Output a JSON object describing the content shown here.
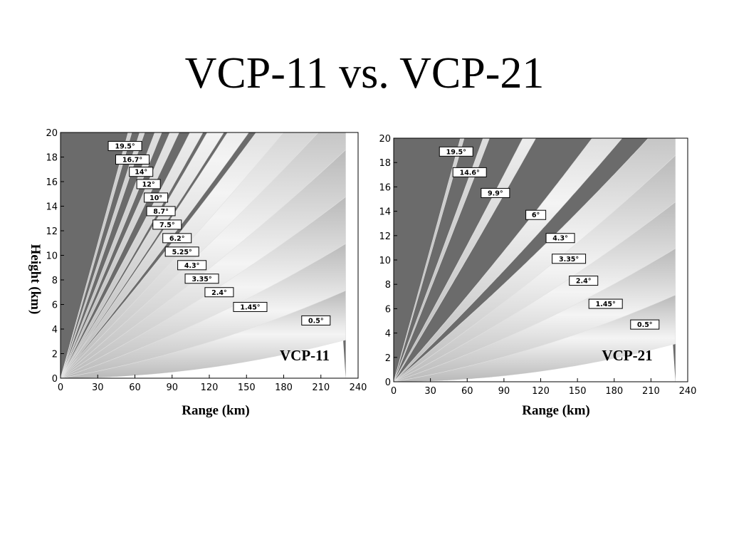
{
  "slide": {
    "title": "VCP-11 vs. VCP-21"
  },
  "colors": {
    "background": "#6b6b6b",
    "beam_center": "#f4f4f4",
    "beam_edge": "#b9b9b9"
  },
  "chart_data": [
    {
      "type": "area",
      "title": "",
      "xlabel": "Range (km)",
      "ylabel": "Height (km)",
      "annotation": "VCP-11",
      "xlim": [
        0,
        240
      ],
      "ylim": [
        0,
        20
      ],
      "x_ticks": [
        "0",
        "30",
        "60",
        "90",
        "120",
        "150",
        "180",
        "210",
        "240"
      ],
      "y_ticks": [
        "0",
        "2",
        "4",
        "6",
        "8",
        "10",
        "12",
        "14",
        "16",
        "18",
        "20"
      ],
      "grid": false,
      "legend": "none",
      "beams": [
        {
          "label": "19.5°",
          "elevation": 19.5,
          "label_x": 52,
          "label_y": 18.9
        },
        {
          "label": "16.7°",
          "elevation": 16.7,
          "label_x": 58,
          "label_y": 17.8
        },
        {
          "label": "14°",
          "elevation": 14,
          "label_x": 65,
          "label_y": 16.8
        },
        {
          "label": "12°",
          "elevation": 12,
          "label_x": 71,
          "label_y": 15.8
        },
        {
          "label": "10°",
          "elevation": 10,
          "label_x": 77,
          "label_y": 14.7
        },
        {
          "label": "8.7°",
          "elevation": 8.7,
          "label_x": 81,
          "label_y": 13.6
        },
        {
          "label": "7.5°",
          "elevation": 7.5,
          "label_x": 86,
          "label_y": 12.5
        },
        {
          "label": "6.2°",
          "elevation": 6.2,
          "label_x": 94,
          "label_y": 11.4
        },
        {
          "label": "5.25°",
          "elevation": 5.25,
          "label_x": 98,
          "label_y": 10.3
        },
        {
          "label": "4.3°",
          "elevation": 4.3,
          "label_x": 106,
          "label_y": 9.2
        },
        {
          "label": "3.35°",
          "elevation": 3.35,
          "label_x": 114,
          "label_y": 8.1
        },
        {
          "label": "2.4°",
          "elevation": 2.4,
          "label_x": 128,
          "label_y": 7.0
        },
        {
          "label": "1.45°",
          "elevation": 1.45,
          "label_x": 153,
          "label_y": 5.8
        },
        {
          "label": "0.5°",
          "elevation": 0.5,
          "label_x": 206,
          "label_y": 4.7
        }
      ]
    },
    {
      "type": "area",
      "title": "",
      "xlabel": "Range (km)",
      "ylabel": "",
      "annotation": "VCP-21",
      "xlim": [
        0,
        240
      ],
      "ylim": [
        0,
        20
      ],
      "x_ticks": [
        "0",
        "30",
        "60",
        "90",
        "120",
        "150",
        "180",
        "210",
        "240"
      ],
      "y_ticks": [
        "0",
        "2",
        "4",
        "6",
        "8",
        "10",
        "12",
        "14",
        "16",
        "18",
        "20"
      ],
      "grid": false,
      "legend": "none",
      "beams": [
        {
          "label": "19.5°",
          "elevation": 19.5,
          "label_x": 51,
          "label_y": 18.9
        },
        {
          "label": "14.6°",
          "elevation": 14.6,
          "label_x": 62,
          "label_y": 17.2
        },
        {
          "label": "9.9°",
          "elevation": 9.9,
          "label_x": 83,
          "label_y": 15.5
        },
        {
          "label": "6°",
          "elevation": 6.0,
          "label_x": 116,
          "label_y": 13.7
        },
        {
          "label": "4.3°",
          "elevation": 4.3,
          "label_x": 136,
          "label_y": 11.8
        },
        {
          "label": "3.35°",
          "elevation": 3.35,
          "label_x": 143,
          "label_y": 10.1
        },
        {
          "label": "2.4°",
          "elevation": 2.4,
          "label_x": 155,
          "label_y": 8.3
        },
        {
          "label": "1.45°",
          "elevation": 1.45,
          "label_x": 173,
          "label_y": 6.4
        },
        {
          "label": "0.5°",
          "elevation": 0.5,
          "label_x": 205,
          "label_y": 4.7
        }
      ]
    }
  ]
}
